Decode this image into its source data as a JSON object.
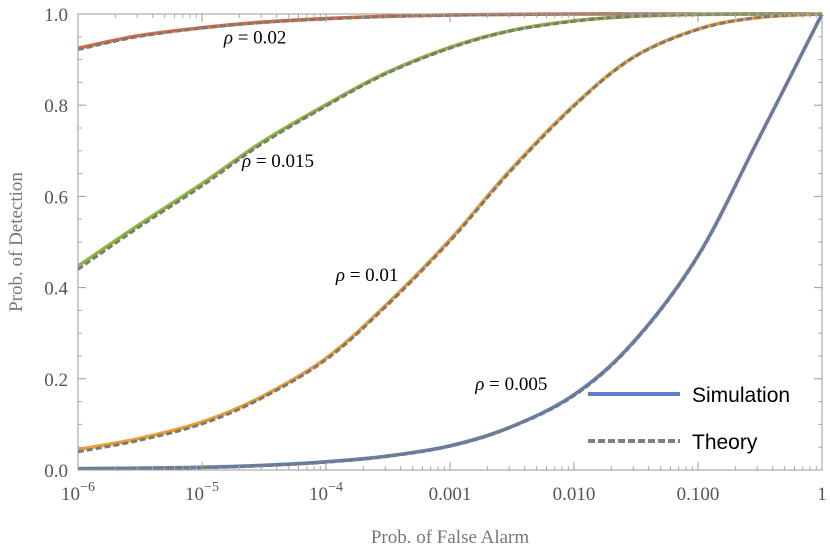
{
  "chart_data": {
    "type": "line",
    "title": "",
    "xlabel": "Prob. of False Alarm",
    "ylabel": "Prob. of Detection",
    "xscale": "log",
    "xlim": [
      1e-06,
      1
    ],
    "ylim": [
      0,
      1
    ],
    "x_ticks": [
      {
        "value": 1e-06,
        "base": "10",
        "exp": "−6"
      },
      {
        "value": 1e-05,
        "base": "10",
        "exp": "−5"
      },
      {
        "value": 0.0001,
        "base": "10",
        "exp": "−4"
      },
      {
        "value": 0.001,
        "label": "0.001"
      },
      {
        "value": 0.01,
        "label": "0.010"
      },
      {
        "value": 0.1,
        "label": "0.100"
      },
      {
        "value": 1,
        "label": "1"
      }
    ],
    "y_ticks": [
      {
        "value": 0.0,
        "label": "0.0"
      },
      {
        "value": 0.2,
        "label": "0.2"
      },
      {
        "value": 0.4,
        "label": "0.4"
      },
      {
        "value": 0.6,
        "label": "0.6"
      },
      {
        "value": 0.8,
        "label": "0.8"
      },
      {
        "value": 1.0,
        "label": "1.0"
      }
    ],
    "legend": {
      "position": "bottom-right",
      "entries": [
        {
          "label": "Simulation",
          "style": "solid",
          "color": "#5b7fbf"
        },
        {
          "label": "Theory",
          "style": "dashed",
          "color": "#808080"
        }
      ]
    },
    "x": [
      1e-06,
      3e-06,
      1e-05,
      3e-05,
      0.0001,
      0.0003,
      0.001,
      0.003,
      0.01,
      0.03,
      0.1,
      0.3,
      1
    ],
    "series": [
      {
        "name": "ρ = 0.02",
        "label_text": "= 0.02",
        "label_x": 1.5e-05,
        "label_y": 0.935,
        "color": "#e06a3a",
        "simulation": [
          0.925,
          0.952,
          0.97,
          0.982,
          0.99,
          0.995,
          0.998,
          0.999,
          1.0,
          1.0,
          1.0,
          1.0,
          1.0
        ],
        "theory": [
          0.922,
          0.95,
          0.969,
          0.981,
          0.989,
          0.994,
          0.997,
          0.999,
          1.0,
          1.0,
          1.0,
          1.0,
          1.0
        ]
      },
      {
        "name": "ρ = 0.015",
        "label_text": "= 0.015",
        "label_x": 2.1e-05,
        "label_y": 0.665,
        "color": "#8fb83a",
        "simulation": [
          0.447,
          0.535,
          0.628,
          0.718,
          0.801,
          0.87,
          0.927,
          0.963,
          0.985,
          0.995,
          0.999,
          1.0,
          1.0
        ],
        "theory": [
          0.44,
          0.53,
          0.623,
          0.714,
          0.798,
          0.868,
          0.925,
          0.962,
          0.984,
          0.995,
          0.999,
          1.0,
          1.0
        ]
      },
      {
        "name": "ρ = 0.01",
        "label_text": "= 0.01",
        "label_x": 0.00012,
        "label_y": 0.415,
        "color": "#e8a030",
        "simulation": [
          0.045,
          0.068,
          0.105,
          0.16,
          0.245,
          0.36,
          0.505,
          0.655,
          0.8,
          0.905,
          0.967,
          0.992,
          1.0
        ],
        "theory": [
          0.04,
          0.064,
          0.101,
          0.157,
          0.242,
          0.357,
          0.502,
          0.652,
          0.798,
          0.904,
          0.966,
          0.992,
          1.0
        ]
      },
      {
        "name": "ρ = 0.005",
        "label_text": "= 0.005",
        "label_x": 0.0016,
        "label_y": 0.175,
        "color": "#5b7fbf",
        "simulation": [
          0.003,
          0.004,
          0.006,
          0.01,
          0.018,
          0.03,
          0.053,
          0.093,
          0.165,
          0.28,
          0.47,
          0.72,
          1.0
        ],
        "theory": [
          0.002,
          0.003,
          0.005,
          0.009,
          0.017,
          0.029,
          0.052,
          0.092,
          0.163,
          0.278,
          0.468,
          0.719,
          1.0
        ]
      }
    ]
  }
}
